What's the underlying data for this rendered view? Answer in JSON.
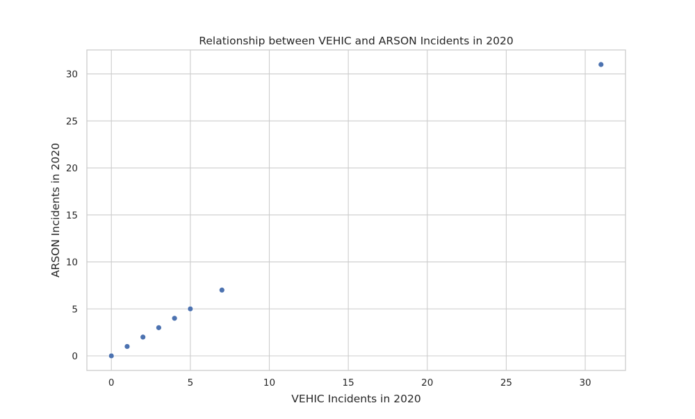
{
  "chart_data": {
    "type": "scatter",
    "title": "Relationship between VEHIC and ARSON Incidents in 2020",
    "xlabel": "VEHIC Incidents in 2020",
    "ylabel": "ARSON Incidents in 2020",
    "xlim": [
      -1.55,
      32.55
    ],
    "ylim": [
      -1.55,
      32.55
    ],
    "xticks": [
      0,
      5,
      10,
      15,
      20,
      25,
      30
    ],
    "yticks": [
      0,
      5,
      10,
      15,
      20,
      25,
      30
    ],
    "grid": true,
    "marker_color": "#4c72b0",
    "points": [
      {
        "x": 0,
        "y": 0
      },
      {
        "x": 1,
        "y": 1
      },
      {
        "x": 2,
        "y": 2
      },
      {
        "x": 3,
        "y": 3
      },
      {
        "x": 4,
        "y": 4
      },
      {
        "x": 5,
        "y": 5
      },
      {
        "x": 7,
        "y": 7
      },
      {
        "x": 31,
        "y": 31
      }
    ]
  }
}
